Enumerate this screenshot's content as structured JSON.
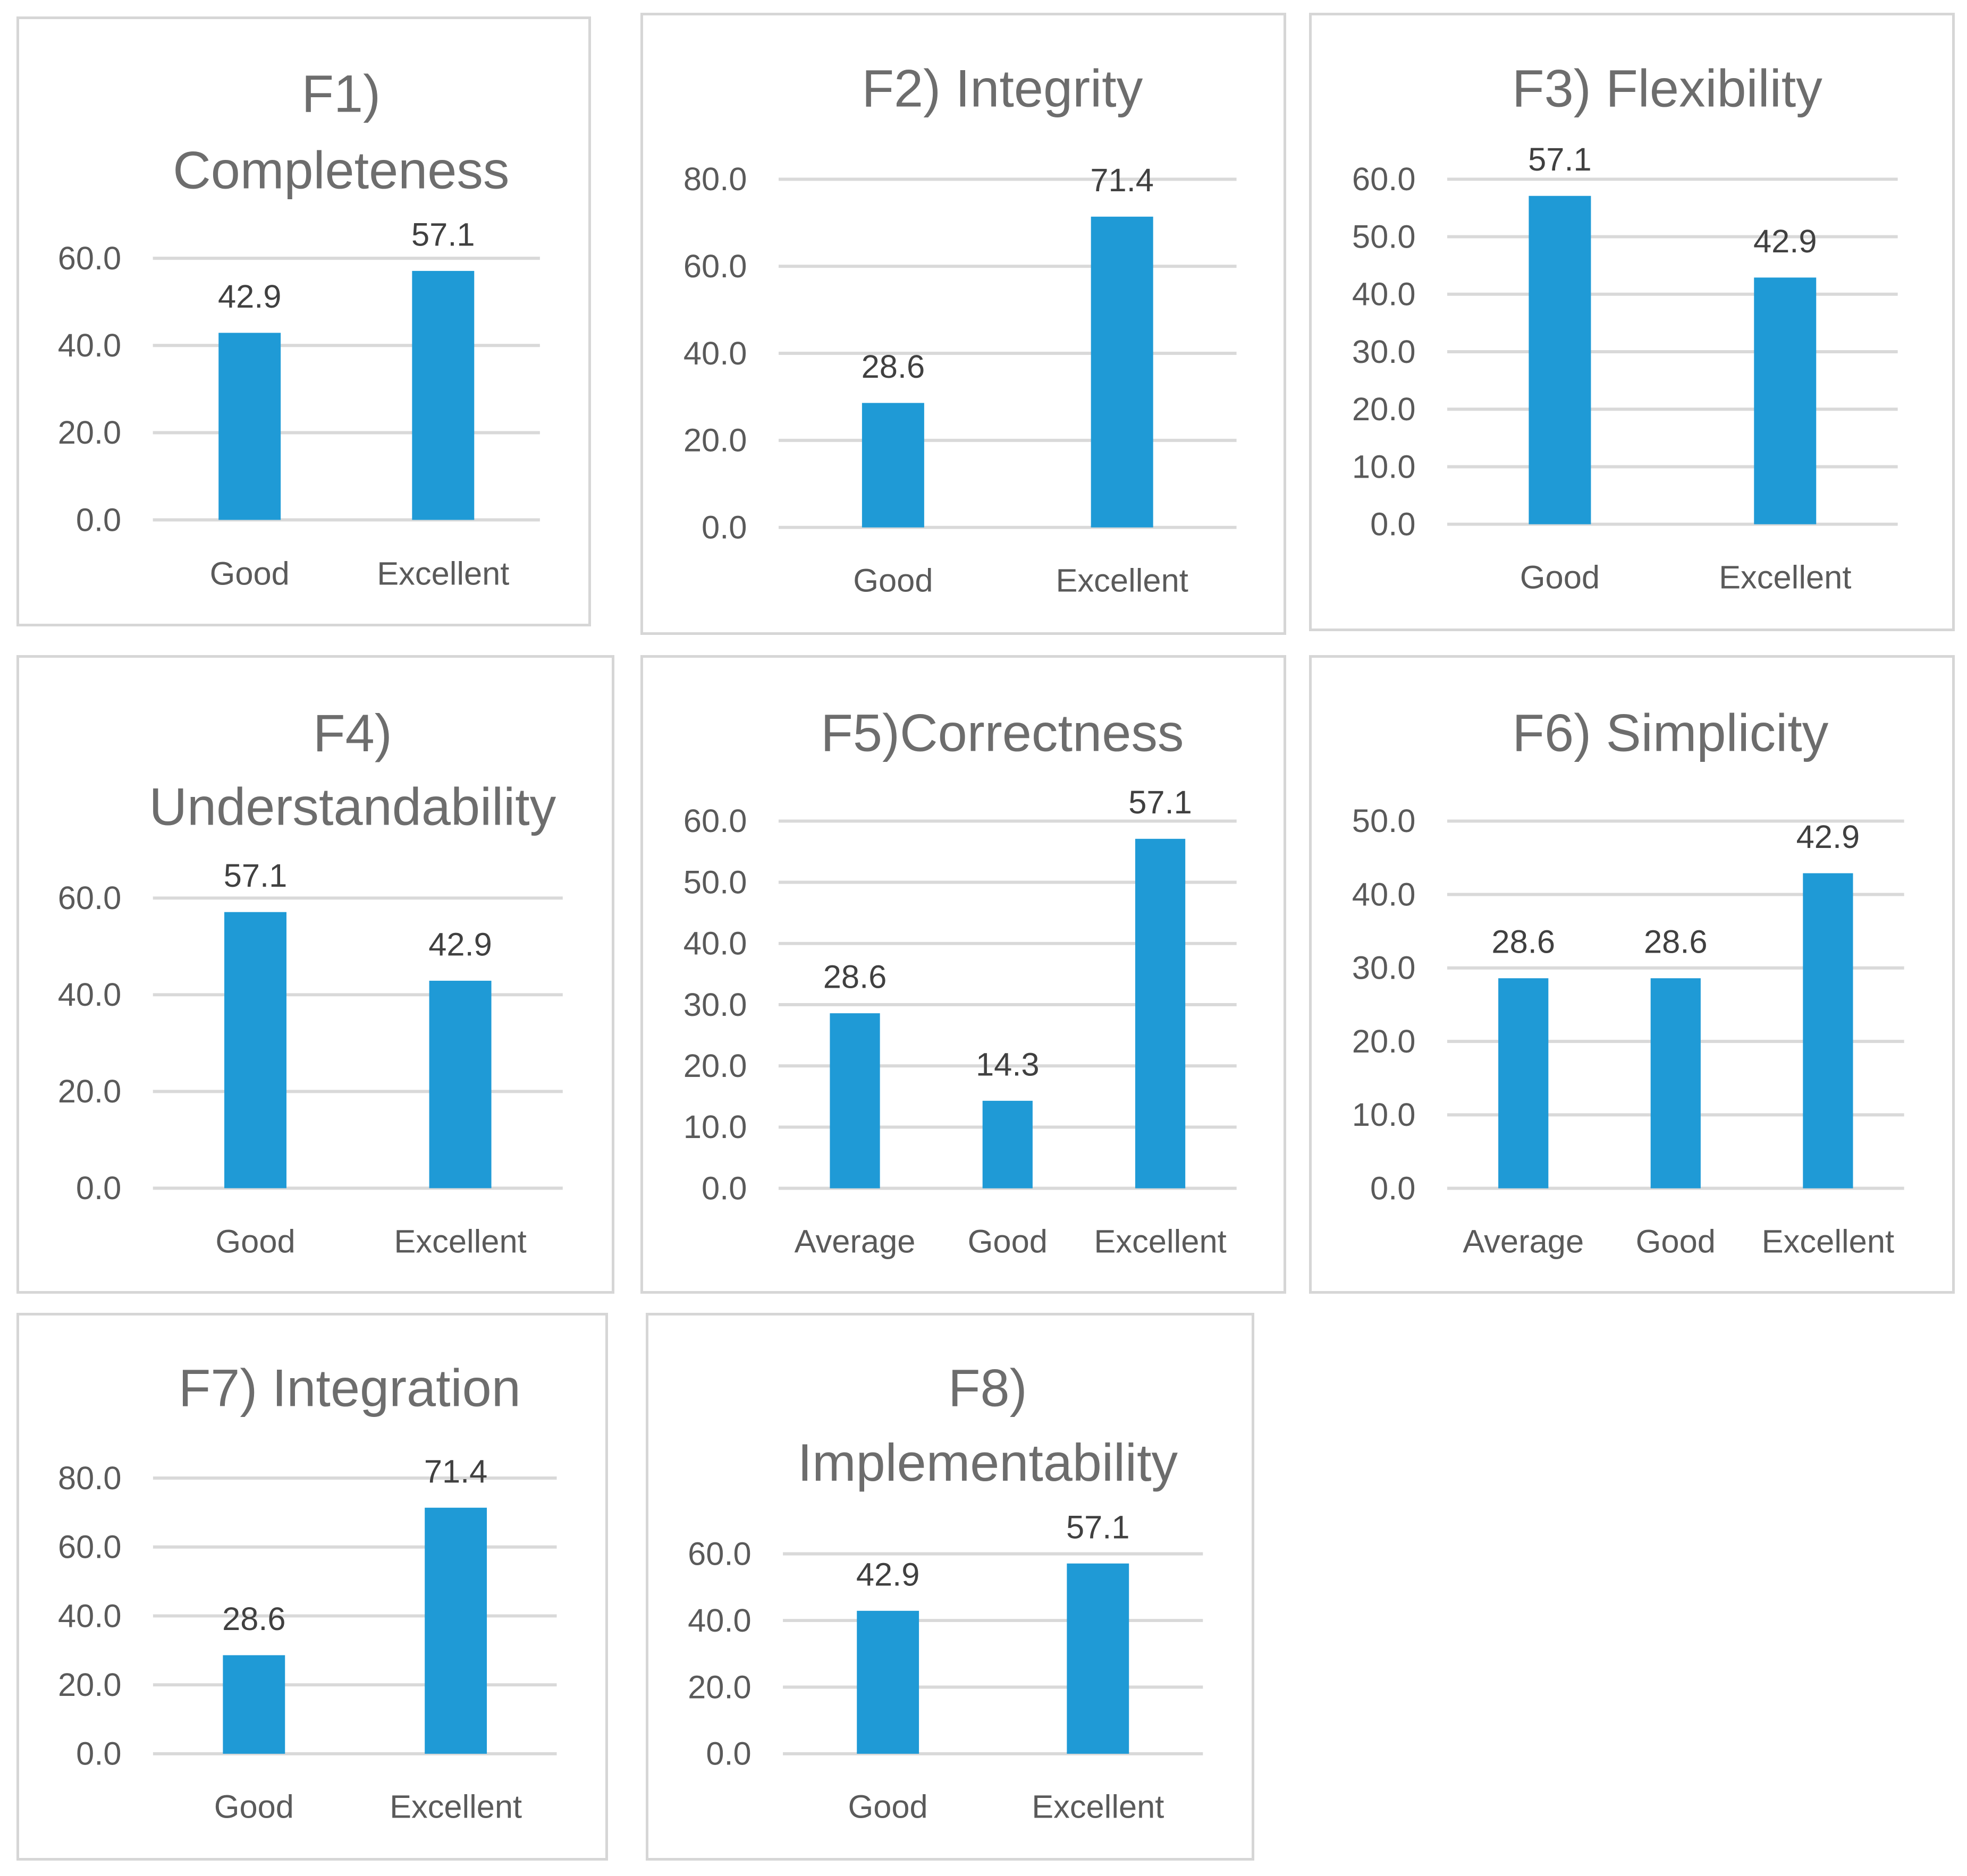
{
  "colors": {
    "bar": "#1f9ad6",
    "grid": "#d9d9d9",
    "title": "#6d6d6d",
    "text": "#5a5a5a",
    "label": "#404040",
    "border": "#d6d6d6"
  },
  "chart_data": [
    {
      "type": "bar",
      "id": "f1",
      "title_lines": [
        "F1)",
        "Completeness"
      ],
      "categories": [
        "Good",
        "Excellent"
      ],
      "values": [
        42.9,
        57.1
      ],
      "data_labels": [
        "42.9",
        "57.1"
      ],
      "ylim": [
        0,
        60
      ],
      "yticks": [
        "0.0",
        "20.0",
        "40.0",
        "60.0"
      ],
      "xlabel": "",
      "ylabel": ""
    },
    {
      "type": "bar",
      "id": "f2",
      "title_lines": [
        "F2) Integrity"
      ],
      "categories": [
        "Good",
        "Excellent"
      ],
      "values": [
        28.6,
        71.4
      ],
      "data_labels": [
        "28.6",
        "71.4"
      ],
      "ylim": [
        0,
        80
      ],
      "yticks": [
        "0.0",
        "20.0",
        "40.0",
        "60.0",
        "80.0"
      ],
      "xlabel": "",
      "ylabel": ""
    },
    {
      "type": "bar",
      "id": "f3",
      "title_lines": [
        "F3) Flexibility"
      ],
      "categories": [
        "Good",
        "Excellent"
      ],
      "values": [
        57.1,
        42.9
      ],
      "data_labels": [
        "57.1",
        "42.9"
      ],
      "ylim": [
        0,
        60
      ],
      "yticks": [
        "0.0",
        "10.0",
        "20.0",
        "30.0",
        "40.0",
        "50.0",
        "60.0"
      ],
      "xlabel": "",
      "ylabel": ""
    },
    {
      "type": "bar",
      "id": "f4",
      "title_lines": [
        "F4)",
        "Understandability"
      ],
      "categories": [
        "Good",
        "Excellent"
      ],
      "values": [
        57.1,
        42.9
      ],
      "data_labels": [
        "57.1",
        "42.9"
      ],
      "ylim": [
        0,
        60
      ],
      "yticks": [
        "0.0",
        "20.0",
        "40.0",
        "60.0"
      ],
      "xlabel": "",
      "ylabel": ""
    },
    {
      "type": "bar",
      "id": "f5",
      "title_lines": [
        "F5)Correctness"
      ],
      "categories": [
        "Average",
        "Good",
        "Excellent"
      ],
      "values": [
        28.6,
        14.3,
        57.1
      ],
      "data_labels": [
        "28.6",
        "14.3",
        "57.1"
      ],
      "ylim": [
        0,
        60
      ],
      "yticks": [
        "0.0",
        "10.0",
        "20.0",
        "30.0",
        "40.0",
        "50.0",
        "60.0"
      ],
      "xlabel": "",
      "ylabel": ""
    },
    {
      "type": "bar",
      "id": "f6",
      "title_lines": [
        "F6) Simplicity"
      ],
      "categories": [
        "Average",
        "Good",
        "Excellent"
      ],
      "values": [
        28.6,
        28.6,
        42.9
      ],
      "data_labels": [
        "28.6",
        "28.6",
        "42.9"
      ],
      "ylim": [
        0,
        50
      ],
      "yticks": [
        "0.0",
        "10.0",
        "20.0",
        "30.0",
        "40.0",
        "50.0"
      ],
      "xlabel": "",
      "ylabel": ""
    },
    {
      "type": "bar",
      "id": "f7",
      "title_lines": [
        "F7) Integration"
      ],
      "categories": [
        "Good",
        "Excellent"
      ],
      "values": [
        28.6,
        71.4
      ],
      "data_labels": [
        "28.6",
        "71.4"
      ],
      "ylim": [
        0,
        80
      ],
      "yticks": [
        "0.0",
        "20.0",
        "40.0",
        "60.0",
        "80.0"
      ],
      "xlabel": "",
      "ylabel": ""
    },
    {
      "type": "bar",
      "id": "f8",
      "title_lines": [
        "F8)",
        "Implementability"
      ],
      "categories": [
        "Good",
        "Excellent"
      ],
      "values": [
        42.9,
        57.1
      ],
      "data_labels": [
        "42.9",
        "57.1"
      ],
      "ylim": [
        0,
        60
      ],
      "yticks": [
        "0.0",
        "20.0",
        "40.0",
        "60.0"
      ],
      "xlabel": "",
      "ylabel": ""
    }
  ]
}
